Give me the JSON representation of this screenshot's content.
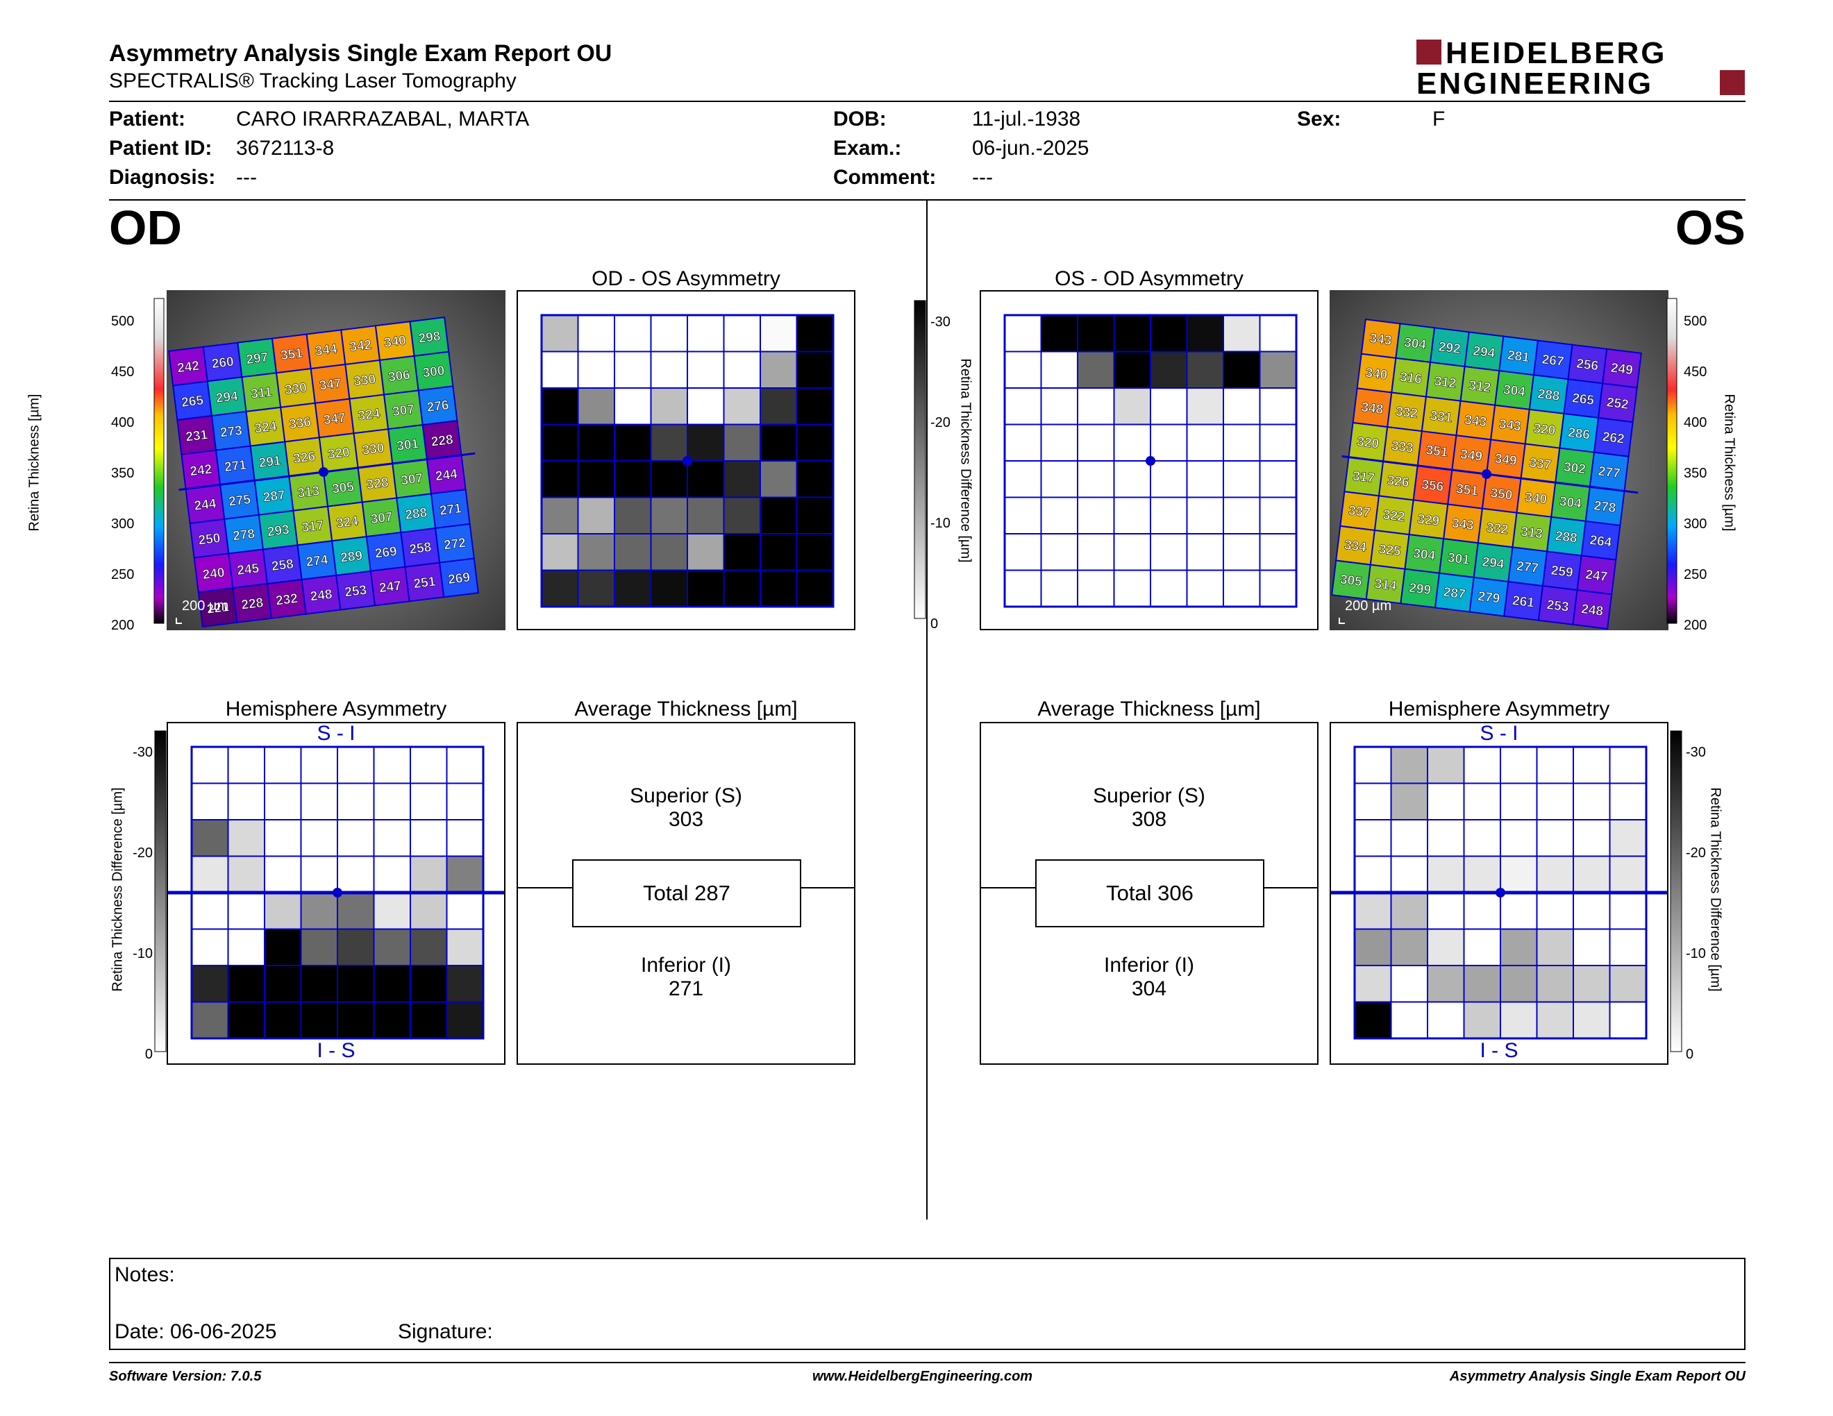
{
  "header": {
    "title": "Asymmetry Analysis Single Exam Report OU",
    "subtitle": "SPECTRALIS® Tracking Laser Tomography",
    "logo_line1": "HEIDELBERG",
    "logo_line2": "ENGINEERING"
  },
  "patient": {
    "patient_label": "Patient:",
    "patient_value": "CARO IRARRAZABAL, MARTA",
    "id_label": "Patient ID:",
    "id_value": "3672113-8",
    "diagnosis_label": "Diagnosis:",
    "diagnosis_value": "---",
    "dob_label": "DOB:",
    "dob_value": "11-jul.-1938",
    "exam_label": "Exam.:",
    "exam_value": "06-jun.-2025",
    "comment_label": "Comment:",
    "comment_value": "---",
    "sex_label": "Sex:",
    "sex_value": "F"
  },
  "od": {
    "eye_label": "OD",
    "asym_title": "OD - OS Asymmetry",
    "hemi_title": "Hemisphere Asymmetry",
    "avg_title": "Average Thickness [µm]",
    "superior_label": "Superior (S)",
    "superior_value": "303",
    "total_label": "Total 287",
    "inferior_label": "Inferior (I)",
    "inferior_value": "271",
    "scale_text": "200 µm",
    "hemi_top": "S - I",
    "hemi_bottom": "I - S",
    "thickness_grid": [
      [
        242,
        260,
        297,
        351,
        344,
        342,
        340,
        298
      ],
      [
        265,
        294,
        311,
        330,
        347,
        330,
        306,
        300
      ],
      [
        231,
        273,
        324,
        336,
        347,
        324,
        307,
        276
      ],
      [
        242,
        271,
        291,
        326,
        320,
        330,
        301,
        228
      ],
      [
        244,
        275,
        287,
        313,
        305,
        328,
        307,
        244
      ],
      [
        250,
        278,
        293,
        317,
        324,
        307,
        288,
        271
      ],
      [
        240,
        245,
        258,
        274,
        289,
        269,
        258,
        272
      ],
      [
        221,
        228,
        232,
        248,
        253,
        247,
        251,
        269
      ]
    ],
    "asym_grid": [
      [
        0.25,
        0,
        0,
        0,
        0,
        0,
        0.02,
        1
      ],
      [
        0,
        0,
        0,
        0,
        0,
        0,
        0.35,
        1
      ],
      [
        1,
        0.45,
        0,
        0.25,
        0,
        0.2,
        0.8,
        1
      ],
      [
        1,
        1,
        1,
        0.75,
        0.9,
        0.6,
        1,
        1
      ],
      [
        1,
        1,
        1,
        1,
        1,
        0.85,
        0.55,
        1
      ],
      [
        0.5,
        0.3,
        0.65,
        0.55,
        0.6,
        0.75,
        1,
        1
      ],
      [
        0.25,
        0.5,
        0.6,
        0.6,
        0.35,
        1,
        1,
        1
      ],
      [
        0.85,
        0.8,
        0.9,
        0.95,
        1,
        1,
        1,
        1
      ]
    ],
    "hemi_grid": [
      [
        0,
        0,
        0,
        0,
        0,
        0,
        0,
        0
      ],
      [
        0,
        0,
        0,
        0,
        0,
        0,
        0,
        0
      ],
      [
        0.6,
        0.15,
        0,
        0,
        0,
        0,
        0,
        0
      ],
      [
        0.1,
        0.15,
        0,
        0,
        0,
        0,
        0.2,
        0.5
      ],
      [
        0,
        0,
        0.2,
        0.45,
        0.55,
        0.1,
        0.2,
        0
      ],
      [
        0,
        0,
        1,
        0.6,
        0.75,
        0.6,
        0.7,
        0.15
      ],
      [
        0.85,
        1,
        1,
        1,
        1,
        1,
        1,
        0.85
      ],
      [
        0.6,
        1,
        1,
        1,
        1,
        1,
        1,
        0.9
      ]
    ]
  },
  "os": {
    "eye_label": "OS",
    "asym_title": "OS - OD Asymmetry",
    "hemi_title": "Hemisphere Asymmetry",
    "avg_title": "Average Thickness [µm]",
    "superior_label": "Superior (S)",
    "superior_value": "308",
    "total_label": "Total 306",
    "inferior_label": "Inferior (I)",
    "inferior_value": "304",
    "scale_text": "200 µm",
    "hemi_top": "S - I",
    "hemi_bottom": "I - S",
    "thickness_grid": [
      [
        343,
        304,
        292,
        294,
        281,
        267,
        256,
        249
      ],
      [
        340,
        316,
        312,
        312,
        304,
        288,
        265,
        252
      ],
      [
        348,
        332,
        331,
        343,
        343,
        320,
        286,
        262
      ],
      [
        320,
        333,
        351,
        349,
        349,
        337,
        302,
        277
      ],
      [
        317,
        326,
        356,
        351,
        350,
        340,
        304,
        278
      ],
      [
        337,
        322,
        329,
        343,
        332,
        313,
        288,
        264
      ],
      [
        334,
        325,
        304,
        301,
        294,
        277,
        259,
        247
      ],
      [
        305,
        314,
        299,
        287,
        279,
        261,
        253,
        248
      ]
    ],
    "asym_grid": [
      [
        0,
        1,
        1,
        1,
        1,
        0.95,
        0.1,
        0
      ],
      [
        0,
        0,
        0.6,
        1,
        0.85,
        0.75,
        1,
        0.45
      ],
      [
        0,
        0,
        0,
        0.15,
        0,
        0.1,
        0,
        0
      ],
      [
        0,
        0,
        0,
        0,
        0,
        0,
        0,
        0
      ],
      [
        0,
        0,
        0,
        0,
        0,
        0,
        0,
        0
      ],
      [
        0,
        0,
        0,
        0,
        0,
        0,
        0,
        0
      ],
      [
        0,
        0,
        0,
        0,
        0,
        0,
        0,
        0
      ],
      [
        0,
        0,
        0,
        0,
        0,
        0,
        0,
        0
      ]
    ],
    "hemi_grid": [
      [
        0,
        0.3,
        0.2,
        0,
        0,
        0,
        0,
        0
      ],
      [
        0,
        0.3,
        0,
        0,
        0,
        0,
        0,
        0
      ],
      [
        0,
        0,
        0,
        0,
        0,
        0,
        0,
        0.1
      ],
      [
        0,
        0,
        0.1,
        0.1,
        0.05,
        0.1,
        0.1,
        0.1
      ],
      [
        0.15,
        0.25,
        0,
        0,
        0,
        0,
        0,
        0
      ],
      [
        0.4,
        0.35,
        0.1,
        0,
        0.35,
        0.2,
        0,
        0
      ],
      [
        0.15,
        0,
        0.3,
        0.35,
        0.35,
        0.25,
        0.2,
        0.2
      ],
      [
        1,
        0,
        0,
        0.2,
        0.1,
        0.15,
        0.1,
        0
      ]
    ]
  },
  "colorbar": {
    "thickness_title": "Retina  Thickness [µm]",
    "thickness_ticks": [
      "500",
      "450",
      "400",
      "350",
      "300",
      "250",
      "200"
    ],
    "diff_title": "Retina Thickness Difference [µm]",
    "diff_ticks": [
      "-30",
      "-20",
      "-10",
      "0"
    ]
  },
  "notes": {
    "notes_label": "Notes:",
    "date_label": "Date: 06-06-2025",
    "signature_label": "Signature:"
  },
  "footer": {
    "software": "Software Version: 7.0.5",
    "website": "www.HeidelbergEngineering.com",
    "report": "Asymmetry Analysis Single Exam Report OU"
  },
  "colors": {
    "grid_blue": "#0000cc",
    "logo_red": "#8b1a2b"
  }
}
